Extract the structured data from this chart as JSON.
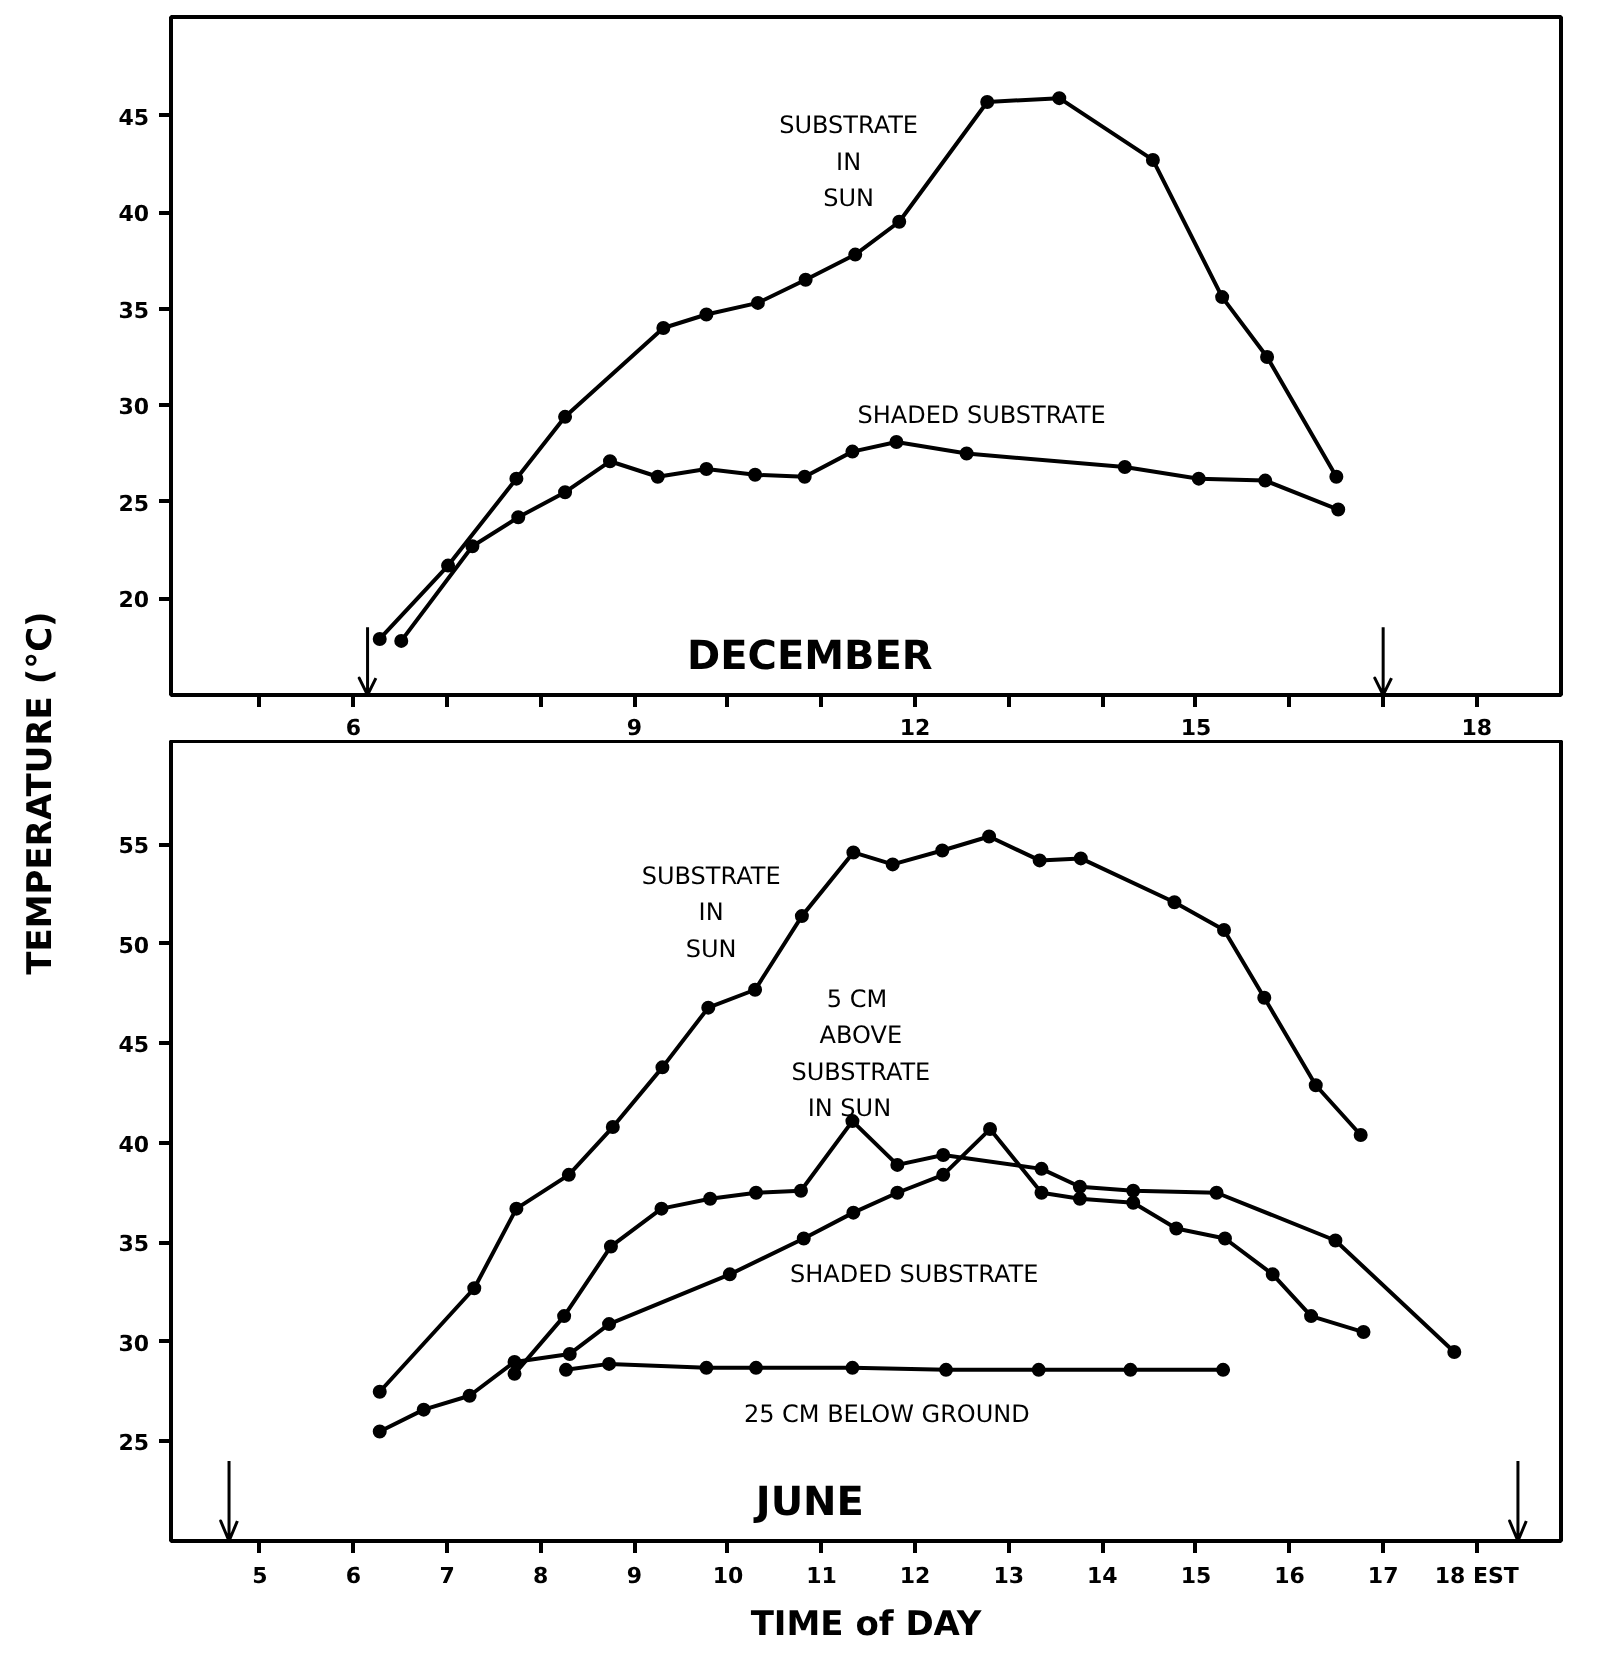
{
  "chart_data": [
    {
      "type": "line",
      "title": "DECEMBER",
      "ylabel": "TEMPERATURE (°C)",
      "marker": "circle",
      "line_style": "solid",
      "grid": false,
      "xlim": [
        4.05,
        18.9
      ],
      "ylim": [
        15,
        50.1
      ],
      "xticks": [
        {
          "value": 5,
          "label": null
        },
        6,
        {
          "value": 7,
          "label": null
        },
        {
          "value": 8,
          "label": null
        },
        9,
        {
          "value": 10,
          "label": null
        },
        {
          "value": 11,
          "label": null
        },
        12,
        {
          "value": 13,
          "label": null
        },
        {
          "value": 14,
          "label": null
        },
        15,
        {
          "value": 16,
          "label": null
        },
        {
          "value": 17,
          "label": null
        },
        18
      ],
      "yticks": [
        20,
        25,
        30,
        35,
        40,
        45
      ],
      "series": [
        {
          "name": "SUBSTRATE\nIN\nSUN",
          "color": "#000000",
          "x": [
            6.28,
            7.01,
            7.74,
            8.26,
            9.31,
            9.77,
            10.32,
            10.83,
            11.36,
            11.83,
            12.77,
            13.54,
            14.54,
            15.28,
            15.76,
            16.5
          ],
          "values": [
            17.9,
            21.7,
            26.2,
            29.4,
            34.0,
            34.7,
            35.3,
            36.5,
            37.8,
            39.5,
            45.7,
            45.9,
            42.7,
            35.6,
            32.5,
            26.3
          ]
        },
        {
          "name": "SHADED  SUBSTRATE",
          "color": "#000000",
          "x": [
            6.51,
            7.27,
            7.76,
            8.26,
            8.74,
            9.25,
            9.77,
            10.29,
            10.82,
            11.33,
            11.8,
            12.55,
            14.24,
            15.03,
            15.74,
            16.52
          ],
          "values": [
            17.8,
            22.7,
            24.2,
            25.5,
            27.1,
            26.3,
            26.7,
            26.4,
            26.3,
            27.6,
            28.1,
            27.5,
            26.8,
            26.2,
            26.1,
            24.6
          ]
        }
      ],
      "ref_lines": [
        {
          "axis": "x",
          "value": 6.15,
          "label": null
        },
        {
          "axis": "x",
          "value": 17.0,
          "label": null
        }
      ]
    },
    {
      "type": "line",
      "title": "JUNE",
      "xlabel": "TIME of DAY",
      "marker": "circle",
      "line_style": "solid",
      "grid": false,
      "xlim": [
        4.05,
        18.9
      ],
      "ylim": [
        20,
        60.2
      ],
      "xticks": [
        5,
        6,
        7,
        8,
        9,
        10,
        11,
        12,
        13,
        14,
        15,
        16,
        17,
        {
          "value": 18,
          "label": "18 EST"
        }
      ],
      "yticks": [
        25,
        30,
        35,
        40,
        45,
        50,
        55
      ],
      "series": [
        {
          "name": "SUBSTRATE\nIN\nSUN",
          "color": "#000000",
          "x": [
            6.28,
            7.29,
            7.74,
            8.3,
            8.77,
            9.3,
            9.79,
            10.29,
            10.79,
            11.34,
            11.76,
            12.29,
            12.79,
            13.33,
            13.77,
            14.77,
            15.3,
            15.73,
            16.28,
            16.76
          ],
          "values": [
            27.5,
            32.7,
            36.7,
            38.4,
            40.8,
            43.8,
            46.8,
            47.7,
            51.4,
            54.6,
            54.0,
            54.7,
            55.4,
            54.2,
            54.3,
            52.1,
            50.7,
            47.3,
            42.9,
            40.4
          ]
        },
        {
          "name": "5  CM\nABOVE\nSUBSTRATE\nIN    SUN",
          "color": "#000000",
          "x": [
            7.72,
            8.25,
            8.75,
            9.29,
            9.81,
            10.3,
            10.78,
            11.33,
            11.81,
            12.3,
            13.35,
            13.76,
            14.33,
            15.22,
            16.49,
            17.76
          ],
          "values": [
            28.4,
            31.3,
            34.8,
            36.7,
            37.2,
            37.5,
            37.6,
            41.1,
            38.9,
            39.4,
            38.7,
            37.8,
            37.6,
            37.5,
            35.1,
            29.5
          ]
        },
        {
          "name": "SHADED  SUBSTRATE",
          "color": "#000000",
          "x": [
            6.28,
            6.75,
            7.24,
            7.72,
            8.31,
            8.73,
            10.02,
            10.81,
            11.34,
            11.81,
            12.3,
            12.8,
            13.35,
            13.76,
            14.33,
            14.79,
            15.31,
            15.82,
            16.23,
            16.79
          ],
          "values": [
            25.5,
            26.6,
            27.3,
            29.0,
            29.4,
            30.9,
            33.4,
            35.2,
            36.5,
            37.5,
            38.4,
            40.7,
            37.5,
            37.2,
            37.0,
            35.7,
            35.2,
            33.4,
            31.3,
            30.5
          ]
        },
        {
          "name": "25  CM  BELOW  GROUND",
          "color": "#000000",
          "x": [
            8.27,
            8.73,
            9.77,
            10.3,
            11.33,
            12.33,
            13.32,
            14.3,
            15.29
          ],
          "values": [
            28.6,
            28.9,
            28.7,
            28.7,
            28.7,
            28.6,
            28.6,
            28.6,
            28.6
          ]
        }
      ],
      "ref_lines": [
        {
          "axis": "x",
          "value": 4.67,
          "label": null
        },
        {
          "axis": "x",
          "value": 18.44,
          "label": null
        }
      ]
    }
  ]
}
